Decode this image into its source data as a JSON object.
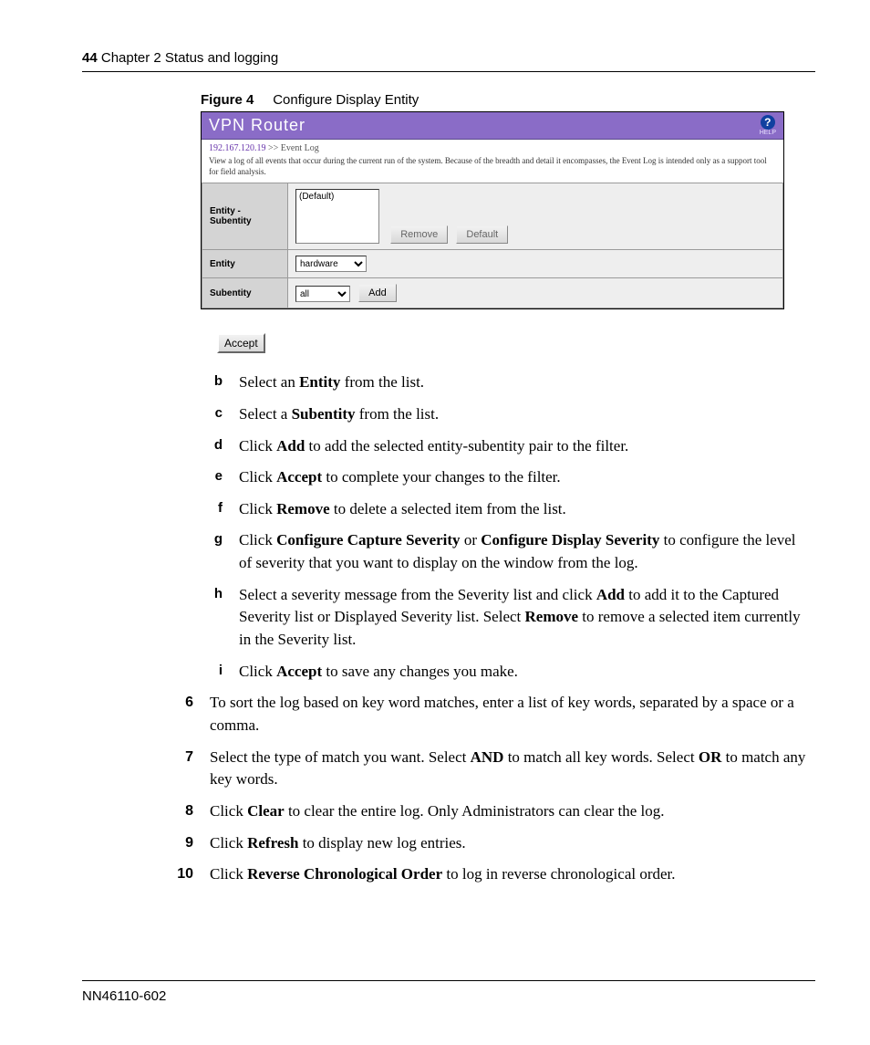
{
  "header": {
    "page_number": "44",
    "chapter": "Chapter 2  Status and logging"
  },
  "figure": {
    "label": "Figure 4",
    "caption": "Configure Display Entity"
  },
  "ui": {
    "title": "VPN  Router",
    "help_label": "HELP",
    "breadcrumb_ip": "192.167.120.19",
    "breadcrumb_arrow": ">>",
    "breadcrumb_location": "Event Log",
    "breadcrumb_desc": "View a log of all events that occur during the current run of the system. Because of the breadth and detail it encompasses, the Event Log is intended only as a support tool for field analysis.",
    "row1_label": "Entity - Subentity",
    "listbox_item": "(Default)",
    "remove_button": "Remove",
    "default_button": "Default",
    "row2_label": "Entity",
    "entity_value": "hardware",
    "row3_label": "Subentity",
    "subentity_value": "all",
    "add_button": "Add",
    "accept_button": "Accept"
  },
  "steps": {
    "b": {
      "marker": "b"
    },
    "c": {
      "marker": "c"
    },
    "d": {
      "marker": "d"
    },
    "e": {
      "marker": "e"
    },
    "f": {
      "marker": "f"
    },
    "g": {
      "marker": "g"
    },
    "h": {
      "marker": "h"
    },
    "i": {
      "marker": "i"
    },
    "n6": {
      "marker": "6"
    },
    "n7": {
      "marker": "7"
    },
    "n8": {
      "marker": "8"
    },
    "n9": {
      "marker": "9"
    },
    "n10": {
      "marker": "10"
    }
  },
  "footer": {
    "doc_id": "NN46110-602"
  }
}
